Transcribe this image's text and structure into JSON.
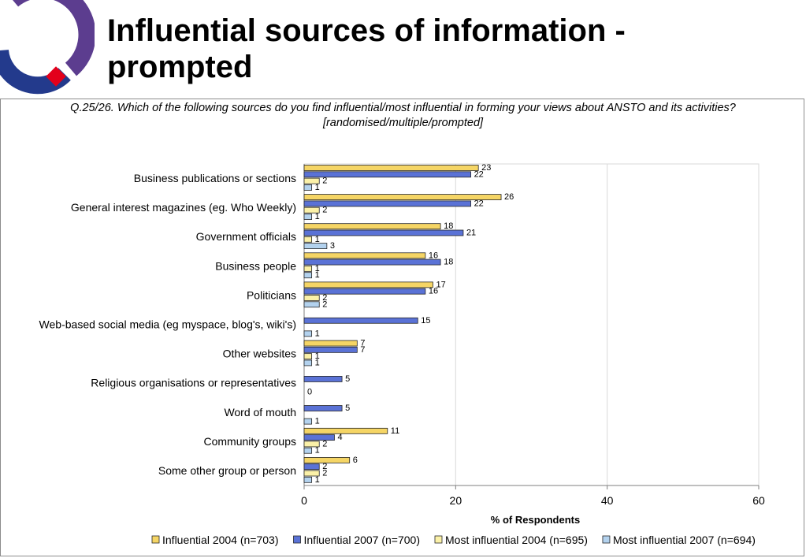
{
  "slide": {
    "title": "Influential sources of information - prompted",
    "question": "Q.25/26. Which of the following sources do you find influential/most influential in forming your views about ANSTO and its activities? [randomised/multiple/prompted]"
  },
  "logo": {
    "icon": "organisation-logo-ring",
    "colors": {
      "purple": "#5c3d8f",
      "blue": "#233a8c",
      "red": "#e3001b"
    }
  },
  "chart_data": {
    "type": "bar",
    "orientation": "horizontal",
    "categories": [
      "Business publications or sections",
      "General interest magazines (eg. Who Weekly)",
      "Government officials",
      "Business people",
      "Politicians",
      "Web-based social media (eg myspace, blog's, wiki's)",
      "Other websites",
      "Religious organisations or representatives",
      "Word of mouth",
      "Community groups",
      "Some other group or person"
    ],
    "series": [
      {
        "name": "Influential 2004 (n=703)",
        "color": "#f5d565",
        "values": [
          23,
          26,
          18,
          16,
          17,
          null,
          7,
          null,
          null,
          11,
          6
        ]
      },
      {
        "name": "Influential 2007 (n=700)",
        "color": "#5a72d6",
        "values": [
          22,
          22,
          21,
          18,
          16,
          15,
          7,
          5,
          5,
          4,
          2
        ]
      },
      {
        "name": "Most influential 2004 (n=695)",
        "color": "#fbf1a8",
        "values": [
          2,
          2,
          1,
          1,
          2,
          null,
          1,
          null,
          null,
          2,
          2
        ]
      },
      {
        "name": "Most influential 2007 (n=694)",
        "color": "#b3d2ee",
        "values": [
          1,
          1,
          3,
          1,
          2,
          1,
          1,
          0,
          1,
          1,
          1
        ]
      }
    ],
    "xlabel": "% of Respondents",
    "xlim": [
      0,
      60
    ],
    "xticks": [
      0,
      20,
      40,
      60
    ],
    "grid": true,
    "legend": "bottom"
  }
}
